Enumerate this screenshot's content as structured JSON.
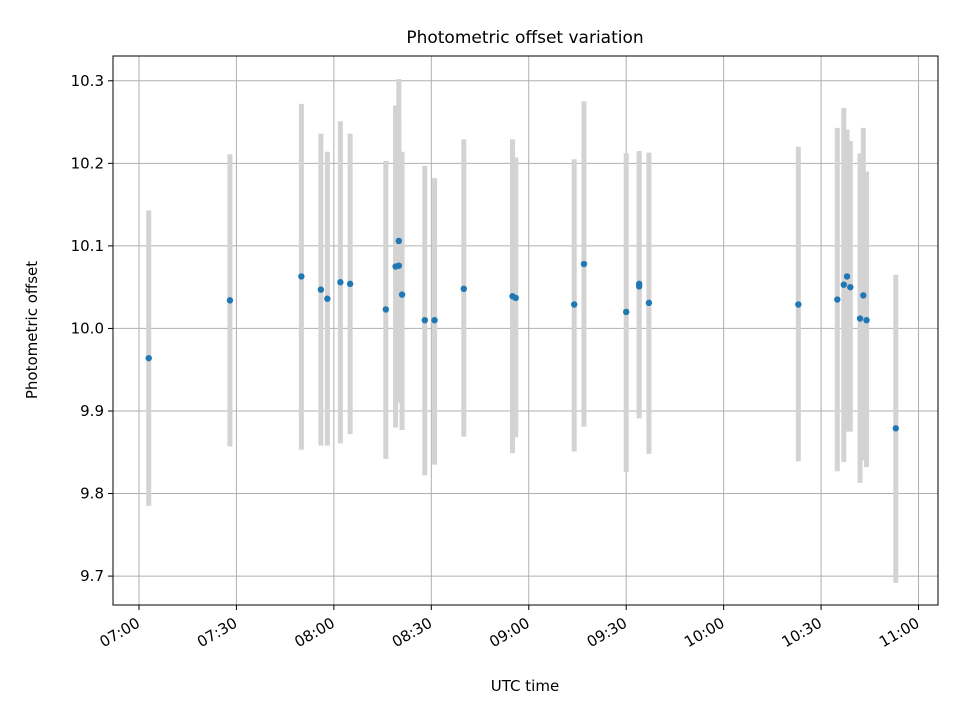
{
  "chart_data": {
    "type": "scatter",
    "title": "Photometric offset variation",
    "xlabel": "UTC time",
    "ylabel": "Photometric offset",
    "xlim": [
      "06:52",
      "11:06"
    ],
    "ylim": [
      9.665,
      10.33
    ],
    "grid": true,
    "x_ticks": [
      "07:00",
      "07:30",
      "08:00",
      "08:30",
      "09:00",
      "09:30",
      "10:00",
      "10:30",
      "11:00"
    ],
    "y_ticks": [
      "9.7",
      "9.8",
      "9.9",
      "10.0",
      "10.1",
      "10.2",
      "10.3"
    ],
    "colors": {
      "points": "#1f77b4",
      "error_bars": "#d3d3d3",
      "grid": "#b0b0b0"
    },
    "points": [
      {
        "t": "07:03",
        "y": 9.964,
        "lo": 9.785,
        "hi": 10.143
      },
      {
        "t": "07:28",
        "y": 10.034,
        "lo": 9.857,
        "hi": 10.211
      },
      {
        "t": "07:50",
        "y": 10.063,
        "lo": 9.853,
        "hi": 10.272
      },
      {
        "t": "07:56",
        "y": 10.047,
        "lo": 9.858,
        "hi": 10.236
      },
      {
        "t": "07:58",
        "y": 10.036,
        "lo": 9.858,
        "hi": 10.214
      },
      {
        "t": "08:02",
        "y": 10.056,
        "lo": 9.861,
        "hi": 10.251
      },
      {
        "t": "08:05",
        "y": 10.054,
        "lo": 9.872,
        "hi": 10.236
      },
      {
        "t": "08:16",
        "y": 10.023,
        "lo": 9.842,
        "hi": 10.203
      },
      {
        "t": "08:19",
        "y": 10.075,
        "lo": 9.88,
        "hi": 10.27
      },
      {
        "t": "08:20",
        "y": 10.076,
        "lo": 9.92,
        "hi": 10.25
      },
      {
        "t": "08:20",
        "y": 10.106,
        "lo": 9.91,
        "hi": 10.302
      },
      {
        "t": "08:21",
        "y": 10.041,
        "lo": 9.877,
        "hi": 10.214
      },
      {
        "t": "08:28",
        "y": 10.01,
        "lo": 9.822,
        "hi": 10.197
      },
      {
        "t": "08:31",
        "y": 10.01,
        "lo": 9.835,
        "hi": 10.182
      },
      {
        "t": "08:40",
        "y": 10.048,
        "lo": 9.869,
        "hi": 10.229
      },
      {
        "t": "08:55",
        "y": 10.039,
        "lo": 9.849,
        "hi": 10.229
      },
      {
        "t": "08:56",
        "y": 10.037,
        "lo": 9.868,
        "hi": 10.207
      },
      {
        "t": "09:14",
        "y": 10.029,
        "lo": 9.851,
        "hi": 10.205
      },
      {
        "t": "09:17",
        "y": 10.078,
        "lo": 9.881,
        "hi": 10.275
      },
      {
        "t": "09:30",
        "y": 10.02,
        "lo": 9.826,
        "hi": 10.212
      },
      {
        "t": "09:34",
        "y": 10.051,
        "lo": 9.891,
        "hi": 10.215
      },
      {
        "t": "09:34",
        "y": 10.054,
        "lo": 9.895,
        "hi": 10.21
      },
      {
        "t": "09:37",
        "y": 10.031,
        "lo": 9.848,
        "hi": 10.213
      },
      {
        "t": "10:23",
        "y": 10.029,
        "lo": 9.839,
        "hi": 10.22
      },
      {
        "t": "10:35",
        "y": 10.035,
        "lo": 9.827,
        "hi": 10.243
      },
      {
        "t": "10:37",
        "y": 10.053,
        "lo": 9.838,
        "hi": 10.267
      },
      {
        "t": "10:38",
        "y": 10.063,
        "lo": 9.875,
        "hi": 10.241
      },
      {
        "t": "10:39",
        "y": 10.05,
        "lo": 9.875,
        "hi": 10.227
      },
      {
        "t": "10:42",
        "y": 10.012,
        "lo": 9.813,
        "hi": 10.212
      },
      {
        "t": "10:43",
        "y": 10.04,
        "lo": 9.84,
        "hi": 10.243
      },
      {
        "t": "10:44",
        "y": 10.01,
        "lo": 9.832,
        "hi": 10.19
      },
      {
        "t": "10:53",
        "y": 9.879,
        "lo": 9.692,
        "hi": 10.065
      }
    ]
  }
}
